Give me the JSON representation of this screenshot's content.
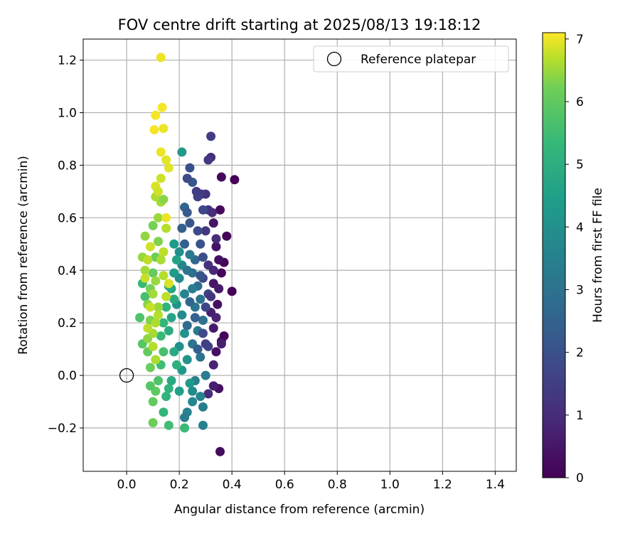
{
  "chart_data": {
    "type": "scatter",
    "title": "FOV centre drift starting at 2025/08/13 19:18:12",
    "xlabel": "Angular distance from reference (arcmin)",
    "ylabel": "Rotation from reference (arcmin)",
    "xlim": [
      -0.165,
      1.48
    ],
    "ylim": [
      -0.365,
      1.28
    ],
    "xticks": [
      0.0,
      0.2,
      0.4,
      0.6,
      0.8,
      1.0,
      1.2,
      1.4
    ],
    "xtick_labels": [
      "0.0",
      "0.2",
      "0.4",
      "0.6",
      "0.8",
      "1.0",
      "1.2",
      "1.4"
    ],
    "yticks": [
      -0.2,
      0.0,
      0.2,
      0.4,
      0.6,
      0.8,
      1.0,
      1.2
    ],
    "ytick_labels": [
      "−0.2",
      "0.0",
      "0.2",
      "0.4",
      "0.6",
      "0.8",
      "1.0",
      "1.2"
    ],
    "grid": true,
    "legend": {
      "placement": "top-right",
      "entries": [
        "Reference platepar"
      ]
    },
    "reference_point": {
      "x": 0.0,
      "y": 0.0
    },
    "colorbar": {
      "label": "Hours from first FF file",
      "colormap": "viridis",
      "min": 0,
      "max": 7.1,
      "ticks": [
        0,
        1,
        2,
        3,
        4,
        5,
        6,
        7
      ],
      "tick_labels": [
        "0",
        "1",
        "2",
        "3",
        "4",
        "5",
        "6",
        "7"
      ]
    },
    "points": [
      {
        "x": 0.41,
        "y": 0.745,
        "h": 0.05
      },
      {
        "x": 0.36,
        "y": 0.755,
        "h": 0.15
      },
      {
        "x": 0.38,
        "y": 0.53,
        "h": 0.1
      },
      {
        "x": 0.355,
        "y": 0.63,
        "h": 0.2
      },
      {
        "x": 0.4,
        "y": 0.32,
        "h": 0.05
      },
      {
        "x": 0.37,
        "y": 0.43,
        "h": 0.1
      },
      {
        "x": 0.36,
        "y": 0.39,
        "h": 0.15
      },
      {
        "x": 0.37,
        "y": 0.15,
        "h": 0.1
      },
      {
        "x": 0.36,
        "y": 0.13,
        "h": 0.15
      },
      {
        "x": 0.355,
        "y": -0.29,
        "h": 0.2
      },
      {
        "x": 0.35,
        "y": -0.05,
        "h": 0.3
      },
      {
        "x": 0.34,
        "y": 0.09,
        "h": 0.3
      },
      {
        "x": 0.35,
        "y": 0.44,
        "h": 0.3
      },
      {
        "x": 0.34,
        "y": 0.49,
        "h": 0.35
      },
      {
        "x": 0.33,
        "y": 0.58,
        "h": 0.4
      },
      {
        "x": 0.345,
        "y": 0.27,
        "h": 0.3
      },
      {
        "x": 0.33,
        "y": 0.35,
        "h": 0.45
      },
      {
        "x": 0.32,
        "y": 0.83,
        "h": 0.9
      },
      {
        "x": 0.325,
        "y": 0.62,
        "h": 0.9
      },
      {
        "x": 0.32,
        "y": 0.91,
        "h": 1.3
      },
      {
        "x": 0.31,
        "y": 0.82,
        "h": 1.2
      },
      {
        "x": 0.3,
        "y": 0.69,
        "h": 1.1
      },
      {
        "x": 0.31,
        "y": 0.63,
        "h": 1.0
      },
      {
        "x": 0.3,
        "y": 0.55,
        "h": 1.2
      },
      {
        "x": 0.31,
        "y": 0.42,
        "h": 1.0
      },
      {
        "x": 0.32,
        "y": 0.24,
        "h": 0.6
      },
      {
        "x": 0.33,
        "y": 0.18,
        "h": 0.5
      },
      {
        "x": 0.33,
        "y": 0.04,
        "h": 0.7
      },
      {
        "x": 0.31,
        "y": -0.07,
        "h": 0.9
      },
      {
        "x": 0.33,
        "y": -0.04,
        "h": 0.6
      },
      {
        "x": 0.3,
        "y": 0.12,
        "h": 1.3
      },
      {
        "x": 0.31,
        "y": 0.31,
        "h": 1.4
      },
      {
        "x": 0.29,
        "y": 0.37,
        "h": 1.5
      },
      {
        "x": 0.285,
        "y": 0.69,
        "h": 1.2
      },
      {
        "x": 0.27,
        "y": 0.68,
        "h": 1.4
      },
      {
        "x": 0.265,
        "y": 0.7,
        "h": 1.3
      },
      {
        "x": 0.29,
        "y": 0.63,
        "h": 1.5
      },
      {
        "x": 0.27,
        "y": 0.55,
        "h": 1.6
      },
      {
        "x": 0.28,
        "y": 0.5,
        "h": 1.8
      },
      {
        "x": 0.24,
        "y": 0.79,
        "h": 1.7
      },
      {
        "x": 0.25,
        "y": 0.735,
        "h": 1.9
      },
      {
        "x": 0.23,
        "y": 0.75,
        "h": 1.6
      },
      {
        "x": 0.22,
        "y": 0.64,
        "h": 2.3
      },
      {
        "x": 0.23,
        "y": 0.62,
        "h": 2.0
      },
      {
        "x": 0.24,
        "y": 0.58,
        "h": 1.9
      },
      {
        "x": 0.21,
        "y": 0.56,
        "h": 2.1
      },
      {
        "x": 0.22,
        "y": 0.5,
        "h": 2.2
      },
      {
        "x": 0.26,
        "y": 0.44,
        "h": 2.4
      },
      {
        "x": 0.25,
        "y": 0.39,
        "h": 2.6
      },
      {
        "x": 0.27,
        "y": 0.34,
        "h": 2.5
      },
      {
        "x": 0.28,
        "y": 0.29,
        "h": 2.7
      },
      {
        "x": 0.26,
        "y": 0.26,
        "h": 2.8
      },
      {
        "x": 0.29,
        "y": 0.21,
        "h": 2.6
      },
      {
        "x": 0.27,
        "y": 0.17,
        "h": 2.9
      },
      {
        "x": 0.25,
        "y": 0.12,
        "h": 2.8
      },
      {
        "x": 0.28,
        "y": 0.07,
        "h": 2.7
      },
      {
        "x": 0.3,
        "y": 0.0,
        "h": 3.0
      },
      {
        "x": 0.26,
        "y": -0.02,
        "h": 3.1
      },
      {
        "x": 0.28,
        "y": -0.08,
        "h": 3.2
      },
      {
        "x": 0.29,
        "y": -0.12,
        "h": 3.0
      },
      {
        "x": 0.29,
        "y": -0.19,
        "h": 3.1
      },
      {
        "x": 0.25,
        "y": -0.1,
        "h": 3.3
      },
      {
        "x": 0.23,
        "y": -0.14,
        "h": 3.2
      },
      {
        "x": 0.22,
        "y": -0.16,
        "h": 3.0
      },
      {
        "x": 0.25,
        "y": -0.06,
        "h": 3.4
      },
      {
        "x": 0.21,
        "y": 0.85,
        "h": 3.8
      },
      {
        "x": 0.2,
        "y": 0.47,
        "h": 3.5
      },
      {
        "x": 0.21,
        "y": 0.42,
        "h": 3.3
      },
      {
        "x": 0.2,
        "y": 0.37,
        "h": 3.4
      },
      {
        "x": 0.22,
        "y": 0.31,
        "h": 3.2
      },
      {
        "x": 0.19,
        "y": 0.27,
        "h": 3.6
      },
      {
        "x": 0.21,
        "y": 0.23,
        "h": 3.4
      },
      {
        "x": 0.22,
        "y": 0.16,
        "h": 3.7
      },
      {
        "x": 0.2,
        "y": 0.11,
        "h": 3.5
      },
      {
        "x": 0.23,
        "y": 0.06,
        "h": 3.6
      },
      {
        "x": 0.21,
        "y": 0.02,
        "h": 3.8
      },
      {
        "x": 0.24,
        "y": -0.03,
        "h": 3.9
      },
      {
        "x": 0.2,
        "y": -0.06,
        "h": 4.0
      },
      {
        "x": 0.24,
        "y": 0.46,
        "h": 2.9
      },
      {
        "x": 0.23,
        "y": 0.4,
        "h": 2.7
      },
      {
        "x": 0.25,
        "y": 0.33,
        "h": 3.0
      },
      {
        "x": 0.24,
        "y": 0.28,
        "h": 2.3
      },
      {
        "x": 0.26,
        "y": 0.22,
        "h": 2.2
      },
      {
        "x": 0.27,
        "y": 0.1,
        "h": 2.1
      },
      {
        "x": 0.23,
        "y": 0.19,
        "h": 2.5
      },
      {
        "x": 0.28,
        "y": 0.38,
        "h": 1.9
      },
      {
        "x": 0.29,
        "y": 0.45,
        "h": 1.7
      },
      {
        "x": 0.3,
        "y": 0.26,
        "h": 1.5
      },
      {
        "x": 0.29,
        "y": 0.16,
        "h": 1.6
      },
      {
        "x": 0.31,
        "y": 0.11,
        "h": 1.4
      },
      {
        "x": 0.32,
        "y": 0.3,
        "h": 1.1
      },
      {
        "x": 0.33,
        "y": 0.4,
        "h": 0.8
      },
      {
        "x": 0.34,
        "y": 0.22,
        "h": 0.7
      },
      {
        "x": 0.35,
        "y": 0.33,
        "h": 0.5
      },
      {
        "x": 0.36,
        "y": 0.12,
        "h": 0.6
      },
      {
        "x": 0.34,
        "y": 0.52,
        "h": 0.9
      },
      {
        "x": 0.18,
        "y": 0.5,
        "h": 3.9
      },
      {
        "x": 0.19,
        "y": 0.44,
        "h": 4.1
      },
      {
        "x": 0.18,
        "y": 0.39,
        "h": 3.9
      },
      {
        "x": 0.17,
        "y": 0.33,
        "h": 4.2
      },
      {
        "x": 0.18,
        "y": 0.29,
        "h": 4.3
      },
      {
        "x": 0.17,
        "y": 0.22,
        "h": 4.2
      },
      {
        "x": 0.16,
        "y": 0.17,
        "h": 4.4
      },
      {
        "x": 0.18,
        "y": 0.09,
        "h": 4.3
      },
      {
        "x": 0.19,
        "y": 0.04,
        "h": 4.5
      },
      {
        "x": 0.17,
        "y": -0.02,
        "h": 4.3
      },
      {
        "x": 0.16,
        "y": -0.05,
        "h": 4.6
      },
      {
        "x": 0.15,
        "y": -0.08,
        "h": 4.6
      },
      {
        "x": 0.22,
        "y": -0.2,
        "h": 4.8
      },
      {
        "x": 0.16,
        "y": -0.19,
        "h": 4.9
      },
      {
        "x": 0.14,
        "y": -0.14,
        "h": 4.7
      },
      {
        "x": 0.16,
        "y": 0.34,
        "h": 4.4
      },
      {
        "x": 0.15,
        "y": 0.26,
        "h": 4.6
      },
      {
        "x": 0.14,
        "y": 0.2,
        "h": 4.7
      },
      {
        "x": 0.13,
        "y": 0.15,
        "h": 4.8
      },
      {
        "x": 0.14,
        "y": 0.09,
        "h": 5.0
      },
      {
        "x": 0.13,
        "y": 0.04,
        "h": 4.9
      },
      {
        "x": 0.12,
        "y": -0.02,
        "h": 5.1
      },
      {
        "x": 0.11,
        "y": -0.06,
        "h": 5.3
      },
      {
        "x": 0.09,
        "y": -0.04,
        "h": 5.2
      },
      {
        "x": 0.1,
        "y": -0.1,
        "h": 5.4
      },
      {
        "x": 0.1,
        "y": -0.18,
        "h": 5.5
      },
      {
        "x": 0.06,
        "y": 0.35,
        "h": 4.8
      },
      {
        "x": 0.07,
        "y": 0.3,
        "h": 5.0
      },
      {
        "x": 0.05,
        "y": 0.22,
        "h": 5.1
      },
      {
        "x": 0.06,
        "y": 0.12,
        "h": 5.2
      },
      {
        "x": 0.08,
        "y": 0.09,
        "h": 5.4
      },
      {
        "x": 0.09,
        "y": 0.03,
        "h": 5.5
      },
      {
        "x": 0.1,
        "y": 0.57,
        "h": 5.6
      },
      {
        "x": 0.12,
        "y": 0.51,
        "h": 5.7
      },
      {
        "x": 0.11,
        "y": 0.45,
        "h": 5.5
      },
      {
        "x": 0.1,
        "y": 0.39,
        "h": 5.4
      },
      {
        "x": 0.09,
        "y": 0.33,
        "h": 5.6
      },
      {
        "x": 0.08,
        "y": 0.27,
        "h": 5.8
      },
      {
        "x": 0.09,
        "y": 0.21,
        "h": 5.7
      },
      {
        "x": 0.08,
        "y": 0.14,
        "h": 5.9
      },
      {
        "x": 0.07,
        "y": 0.53,
        "h": 5.9
      },
      {
        "x": 0.06,
        "y": 0.45,
        "h": 6.0
      },
      {
        "x": 0.07,
        "y": 0.4,
        "h": 6.1
      },
      {
        "x": 0.11,
        "y": 0.36,
        "h": 6.0
      },
      {
        "x": 0.1,
        "y": 0.31,
        "h": 6.1
      },
      {
        "x": 0.12,
        "y": 0.26,
        "h": 6.0
      },
      {
        "x": 0.11,
        "y": 0.2,
        "h": 6.2
      },
      {
        "x": 0.1,
        "y": 0.16,
        "h": 6.1
      },
      {
        "x": 0.13,
        "y": 0.44,
        "h": 6.2
      },
      {
        "x": 0.14,
        "y": 0.38,
        "h": 6.3
      },
      {
        "x": 0.12,
        "y": 0.6,
        "h": 6.0
      },
      {
        "x": 0.13,
        "y": 0.66,
        "h": 6.1
      },
      {
        "x": 0.11,
        "y": 0.68,
        "h": 6.2
      },
      {
        "x": 0.14,
        "y": 0.67,
        "h": 5.8
      },
      {
        "x": 0.15,
        "y": 0.56,
        "h": 6.3
      },
      {
        "x": 0.15,
        "y": 0.3,
        "h": 6.4
      },
      {
        "x": 0.16,
        "y": 0.35,
        "h": 6.7
      },
      {
        "x": 0.14,
        "y": 0.47,
        "h": 6.4
      },
      {
        "x": 0.12,
        "y": 0.23,
        "h": 6.3
      },
      {
        "x": 0.09,
        "y": 0.26,
        "h": 6.5
      },
      {
        "x": 0.13,
        "y": 0.75,
        "h": 6.6
      },
      {
        "x": 0.11,
        "y": 0.72,
        "h": 6.7
      },
      {
        "x": 0.12,
        "y": 0.7,
        "h": 6.6
      },
      {
        "x": 0.15,
        "y": 0.82,
        "h": 6.8
      },
      {
        "x": 0.16,
        "y": 0.79,
        "h": 6.8
      },
      {
        "x": 0.13,
        "y": 0.85,
        "h": 6.9
      },
      {
        "x": 0.15,
        "y": 0.6,
        "h": 6.9
      },
      {
        "x": 0.14,
        "y": 0.94,
        "h": 6.9
      },
      {
        "x": 0.105,
        "y": 0.935,
        "h": 7.0
      },
      {
        "x": 0.11,
        "y": 0.99,
        "h": 7.0
      },
      {
        "x": 0.135,
        "y": 1.02,
        "h": 7.0
      },
      {
        "x": 0.13,
        "y": 1.21,
        "h": 6.9
      },
      {
        "x": 0.08,
        "y": 0.44,
        "h": 6.4
      },
      {
        "x": 0.07,
        "y": 0.37,
        "h": 6.5
      },
      {
        "x": 0.09,
        "y": 0.49,
        "h": 6.6
      },
      {
        "x": 0.1,
        "y": 0.11,
        "h": 6.3
      },
      {
        "x": 0.11,
        "y": 0.06,
        "h": 6.2
      },
      {
        "x": 0.08,
        "y": 0.18,
        "h": 6.4
      }
    ]
  }
}
